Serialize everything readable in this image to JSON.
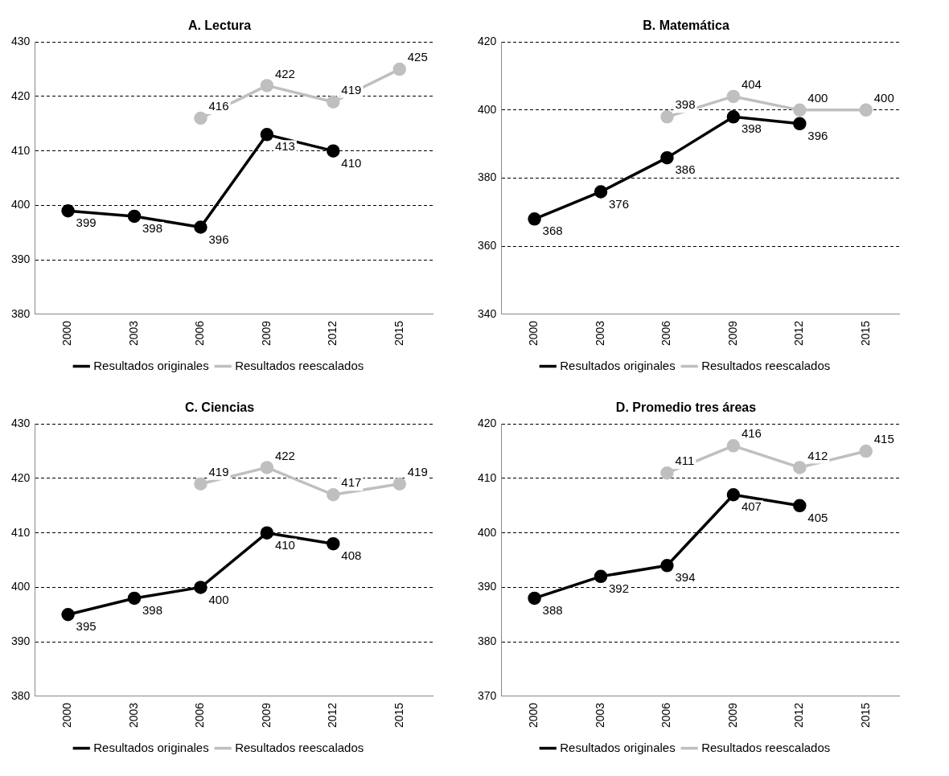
{
  "chart_data": [
    {
      "type": "line",
      "title": "A. Lectura",
      "categories": [
        "2000",
        "2003",
        "2006",
        "2009",
        "2012",
        "2015"
      ],
      "series": [
        {
          "name": "Resultados originales",
          "color": "#000000",
          "values": [
            399,
            398,
            396,
            413,
            410,
            null
          ]
        },
        {
          "name": "Resultados reescalados",
          "color": "#bfbfbf",
          "values": [
            null,
            null,
            416,
            422,
            419,
            425
          ]
        }
      ],
      "ylim": [
        380,
        430
      ],
      "yticks": [
        380,
        390,
        400,
        410,
        420,
        430
      ],
      "grid": "y",
      "legend": "bottom",
      "marker": "circle",
      "line_style": "solid",
      "data_labels": true
    },
    {
      "type": "line",
      "title": "B. Matemática",
      "categories": [
        "2000",
        "2003",
        "2006",
        "2009",
        "2012",
        "2015"
      ],
      "series": [
        {
          "name": "Resultados originales",
          "color": "#000000",
          "values": [
            368,
            376,
            386,
            398,
            396,
            null
          ]
        },
        {
          "name": "Resultados reescalados",
          "color": "#bfbfbf",
          "values": [
            null,
            null,
            398,
            404,
            400,
            400
          ]
        }
      ],
      "ylim": [
        340,
        420
      ],
      "yticks": [
        340,
        360,
        380,
        400,
        420
      ],
      "grid": "y",
      "legend": "bottom",
      "marker": "circle",
      "line_style": "solid",
      "data_labels": true
    },
    {
      "type": "line",
      "title": "C. Ciencias",
      "categories": [
        "2000",
        "2003",
        "2006",
        "2009",
        "2012",
        "2015"
      ],
      "series": [
        {
          "name": "Resultados originales",
          "color": "#000000",
          "values": [
            395,
            398,
            400,
            410,
            408,
            null
          ]
        },
        {
          "name": "Resultados reescalados",
          "color": "#bfbfbf",
          "values": [
            null,
            null,
            419,
            422,
            417,
            419
          ]
        }
      ],
      "ylim": [
        380,
        430
      ],
      "yticks": [
        380,
        390,
        400,
        410,
        420,
        430
      ],
      "grid": "y",
      "legend": "bottom",
      "marker": "circle",
      "line_style": "solid",
      "data_labels": true
    },
    {
      "type": "line",
      "title": "D. Promedio tres áreas",
      "categories": [
        "2000",
        "2003",
        "2006",
        "2009",
        "2012",
        "2015"
      ],
      "series": [
        {
          "name": "Resultados originales",
          "color": "#000000",
          "values": [
            388,
            392,
            394,
            407,
            405,
            null
          ]
        },
        {
          "name": "Resultados reescalados",
          "color": "#bfbfbf",
          "values": [
            null,
            null,
            411,
            416,
            412,
            415
          ]
        }
      ],
      "ylim": [
        370,
        420
      ],
      "yticks": [
        370,
        380,
        390,
        400,
        410,
        420
      ],
      "grid": "y",
      "legend": "bottom",
      "marker": "circle",
      "line_style": "solid",
      "data_labels": true
    }
  ]
}
